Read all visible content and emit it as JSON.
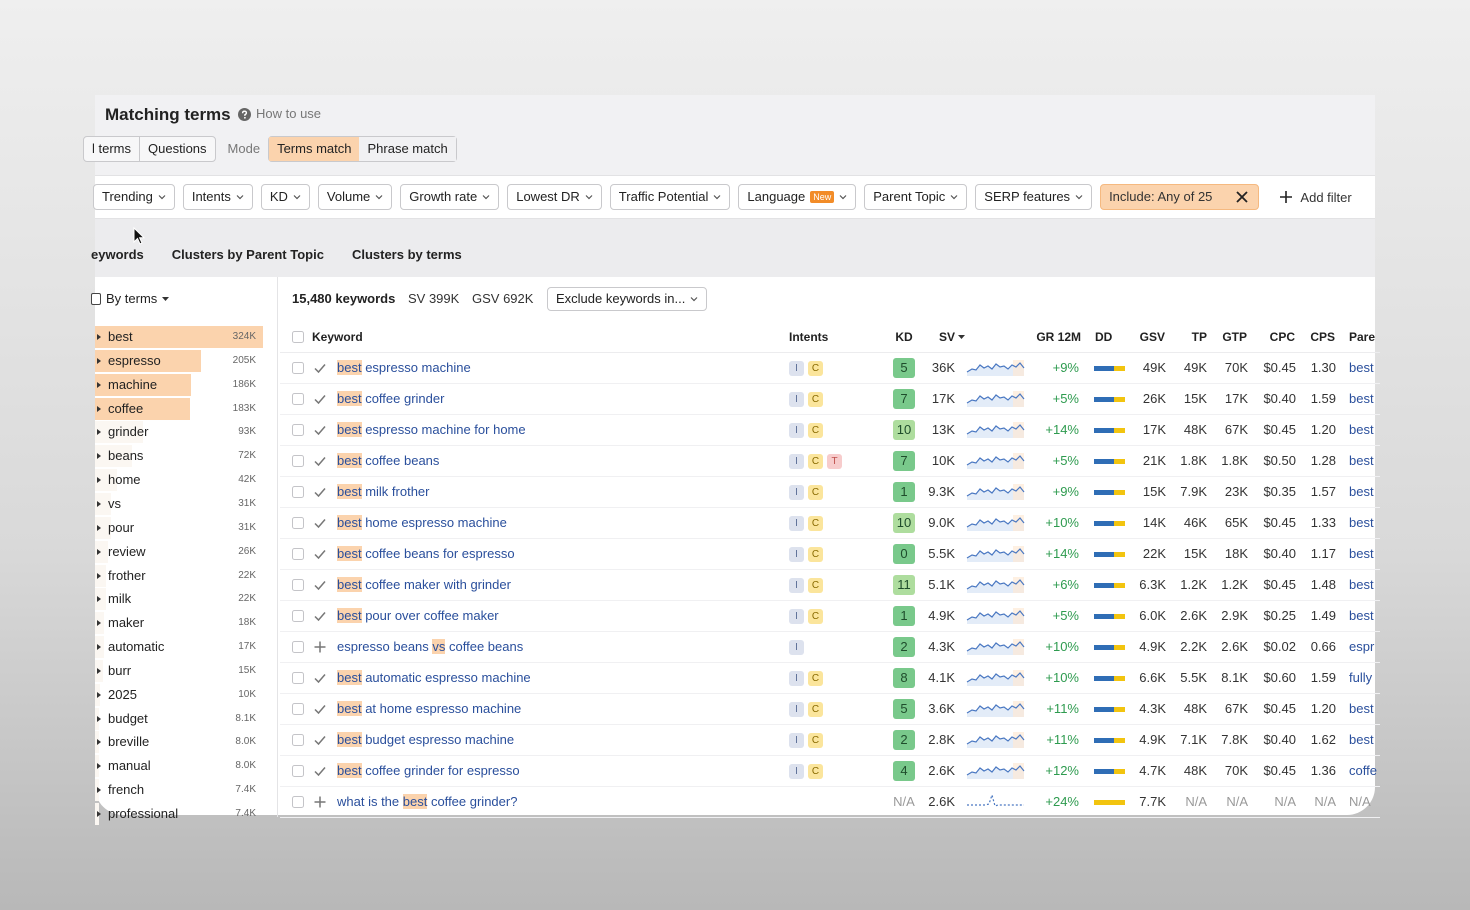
{
  "header": {
    "title": "Matching terms",
    "help": "How to use"
  },
  "mode_bar": {
    "search_tabs": [
      "l terms",
      "Questions"
    ],
    "mode_label": "Mode",
    "match_tabs": [
      "Terms match",
      "Phrase match"
    ]
  },
  "filters": {
    "items": [
      {
        "label": "Trending"
      },
      {
        "label": "Intents"
      },
      {
        "label": "KD"
      },
      {
        "label": "Volume"
      },
      {
        "label": "Growth rate"
      },
      {
        "label": "Lowest DR"
      },
      {
        "label": "Traffic Potential"
      },
      {
        "label": "Language",
        "badge": "New"
      },
      {
        "label": "Parent Topic"
      },
      {
        "label": "SERP features"
      }
    ],
    "include": "Include: Any of 25",
    "add_filter": "Add filter"
  },
  "view_tabs": [
    "eywords",
    "Clusters by Parent Topic",
    "Clusters by terms"
  ],
  "sidebar": {
    "group": "By terms",
    "terms": [
      "best",
      "espresso",
      "machine",
      "coffee",
      "grinder",
      "beans",
      "home",
      "vs",
      "pour",
      "review",
      "frother",
      "milk",
      "maker",
      "automatic",
      "burr",
      "2025",
      "budget",
      "breville",
      "manual",
      "french",
      "professional"
    ],
    "values": [
      324000,
      205000,
      186000,
      183000,
      93000,
      72000,
      42000,
      31000,
      31000,
      26000,
      22000,
      22000,
      18000,
      17000,
      15000,
      10000,
      8100,
      8000,
      8000,
      7400,
      7400
    ],
    "value_labels": [
      "324K",
      "205K",
      "186K",
      "183K",
      "93K",
      "72K",
      "42K",
      "31K",
      "31K",
      "26K",
      "22K",
      "22K",
      "18K",
      "17K",
      "15K",
      "10K",
      "8.1K",
      "8.0K",
      "8.0K",
      "7.4K",
      "7.4K"
    ]
  },
  "toolbar": {
    "count": "15,480 keywords",
    "sv": "SV 399K",
    "gsv": "GSV 692K",
    "exclude": "Exclude keywords in..."
  },
  "table": {
    "columns": [
      "Keyword",
      "Intents",
      "KD",
      "SV",
      "GR 12M",
      "DD",
      "GSV",
      "TP",
      "GTP",
      "CPC",
      "CPS",
      "Pare"
    ],
    "rows": [
      {
        "status": "check",
        "keyword": "best espresso machine",
        "match": "best",
        "intents": [
          "I",
          "C"
        ],
        "kd": 5,
        "sv": "36K",
        "gr": "+9%",
        "gsv": "49K",
        "tp": "49K",
        "gtp": "70K",
        "cpc": "$0.45",
        "cps": "1.30",
        "parent": "best"
      },
      {
        "status": "check",
        "keyword": "best coffee grinder",
        "match": "best",
        "intents": [
          "I",
          "C"
        ],
        "kd": 7,
        "sv": "17K",
        "gr": "+5%",
        "gsv": "26K",
        "tp": "15K",
        "gtp": "17K",
        "cpc": "$0.40",
        "cps": "1.59",
        "parent": "best"
      },
      {
        "status": "check",
        "keyword": "best espresso machine for home",
        "match": "best",
        "intents": [
          "I",
          "C"
        ],
        "kd": 10,
        "sv": "13K",
        "gr": "+14%",
        "gsv": "17K",
        "tp": "48K",
        "gtp": "67K",
        "cpc": "$0.45",
        "cps": "1.20",
        "parent": "best"
      },
      {
        "status": "check",
        "keyword": "best coffee beans",
        "match": "best",
        "intents": [
          "I",
          "C",
          "T"
        ],
        "kd": 7,
        "sv": "10K",
        "gr": "+5%",
        "gsv": "21K",
        "tp": "1.8K",
        "gtp": "1.8K",
        "cpc": "$0.50",
        "cps": "1.28",
        "parent": "best"
      },
      {
        "status": "check",
        "keyword": "best milk frother",
        "match": "best",
        "intents": [
          "I",
          "C"
        ],
        "kd": 1,
        "sv": "9.3K",
        "gr": "+9%",
        "gsv": "15K",
        "tp": "7.9K",
        "gtp": "23K",
        "cpc": "$0.35",
        "cps": "1.57",
        "parent": "best"
      },
      {
        "status": "check",
        "keyword": "best home espresso machine",
        "match": "best",
        "intents": [
          "I",
          "C"
        ],
        "kd": 10,
        "sv": "9.0K",
        "gr": "+10%",
        "gsv": "14K",
        "tp": "46K",
        "gtp": "65K",
        "cpc": "$0.45",
        "cps": "1.33",
        "parent": "best"
      },
      {
        "status": "check",
        "keyword": "best coffee beans for espresso",
        "match": "best",
        "intents": [
          "I",
          "C"
        ],
        "kd": 0,
        "sv": "5.5K",
        "gr": "+14%",
        "gsv": "22K",
        "tp": "15K",
        "gtp": "18K",
        "cpc": "$0.40",
        "cps": "1.17",
        "parent": "best"
      },
      {
        "status": "check",
        "keyword": "best coffee maker with grinder",
        "match": "best",
        "intents": [
          "I",
          "C"
        ],
        "kd": 11,
        "sv": "5.1K",
        "gr": "+6%",
        "gsv": "6.3K",
        "tp": "1.2K",
        "gtp": "1.2K",
        "cpc": "$0.45",
        "cps": "1.48",
        "parent": "best"
      },
      {
        "status": "check",
        "keyword": "best pour over coffee maker",
        "match": "best",
        "intents": [
          "I",
          "C"
        ],
        "kd": 1,
        "sv": "4.9K",
        "gr": "+5%",
        "gsv": "6.0K",
        "tp": "2.6K",
        "gtp": "2.9K",
        "cpc": "$0.25",
        "cps": "1.49",
        "parent": "best"
      },
      {
        "status": "plus",
        "keyword": "espresso beans vs coffee beans",
        "match": "vs",
        "intents": [
          "I"
        ],
        "kd": 2,
        "sv": "4.3K",
        "gr": "+10%",
        "gsv": "4.9K",
        "tp": "2.2K",
        "gtp": "2.6K",
        "cpc": "$0.02",
        "cps": "0.66",
        "parent": "espr"
      },
      {
        "status": "check",
        "keyword": "best automatic espresso machine",
        "match": "best",
        "intents": [
          "I",
          "C"
        ],
        "kd": 8,
        "sv": "4.1K",
        "gr": "+10%",
        "gsv": "6.6K",
        "tp": "5.5K",
        "gtp": "8.1K",
        "cpc": "$0.60",
        "cps": "1.59",
        "parent": "fully"
      },
      {
        "status": "check",
        "keyword": "best at home espresso machine",
        "match": "best",
        "intents": [
          "I",
          "C"
        ],
        "kd": 5,
        "sv": "3.6K",
        "gr": "+11%",
        "gsv": "4.3K",
        "tp": "48K",
        "gtp": "67K",
        "cpc": "$0.45",
        "cps": "1.20",
        "parent": "best"
      },
      {
        "status": "check",
        "keyword": "best budget espresso machine",
        "match": "best",
        "intents": [
          "I",
          "C"
        ],
        "kd": 2,
        "sv": "2.8K",
        "gr": "+11%",
        "gsv": "4.9K",
        "tp": "7.1K",
        "gtp": "7.8K",
        "cpc": "$0.40",
        "cps": "1.62",
        "parent": "best"
      },
      {
        "status": "check",
        "keyword": "best coffee grinder for espresso",
        "match": "best",
        "intents": [
          "I",
          "C"
        ],
        "kd": 4,
        "sv": "2.6K",
        "gr": "+12%",
        "gsv": "4.7K",
        "tp": "48K",
        "gtp": "70K",
        "cpc": "$0.45",
        "cps": "1.36",
        "parent": "coffe"
      },
      {
        "status": "plus",
        "keyword": "what is the best coffee grinder?",
        "match": "best",
        "intents": [],
        "kd": "N/A",
        "sv": "2.6K",
        "gr": "+24%",
        "gsv": "7.7K",
        "tp": "N/A",
        "gtp": "N/A",
        "cpc": "N/A",
        "cps": "N/A",
        "parent": "N/A"
      }
    ]
  }
}
